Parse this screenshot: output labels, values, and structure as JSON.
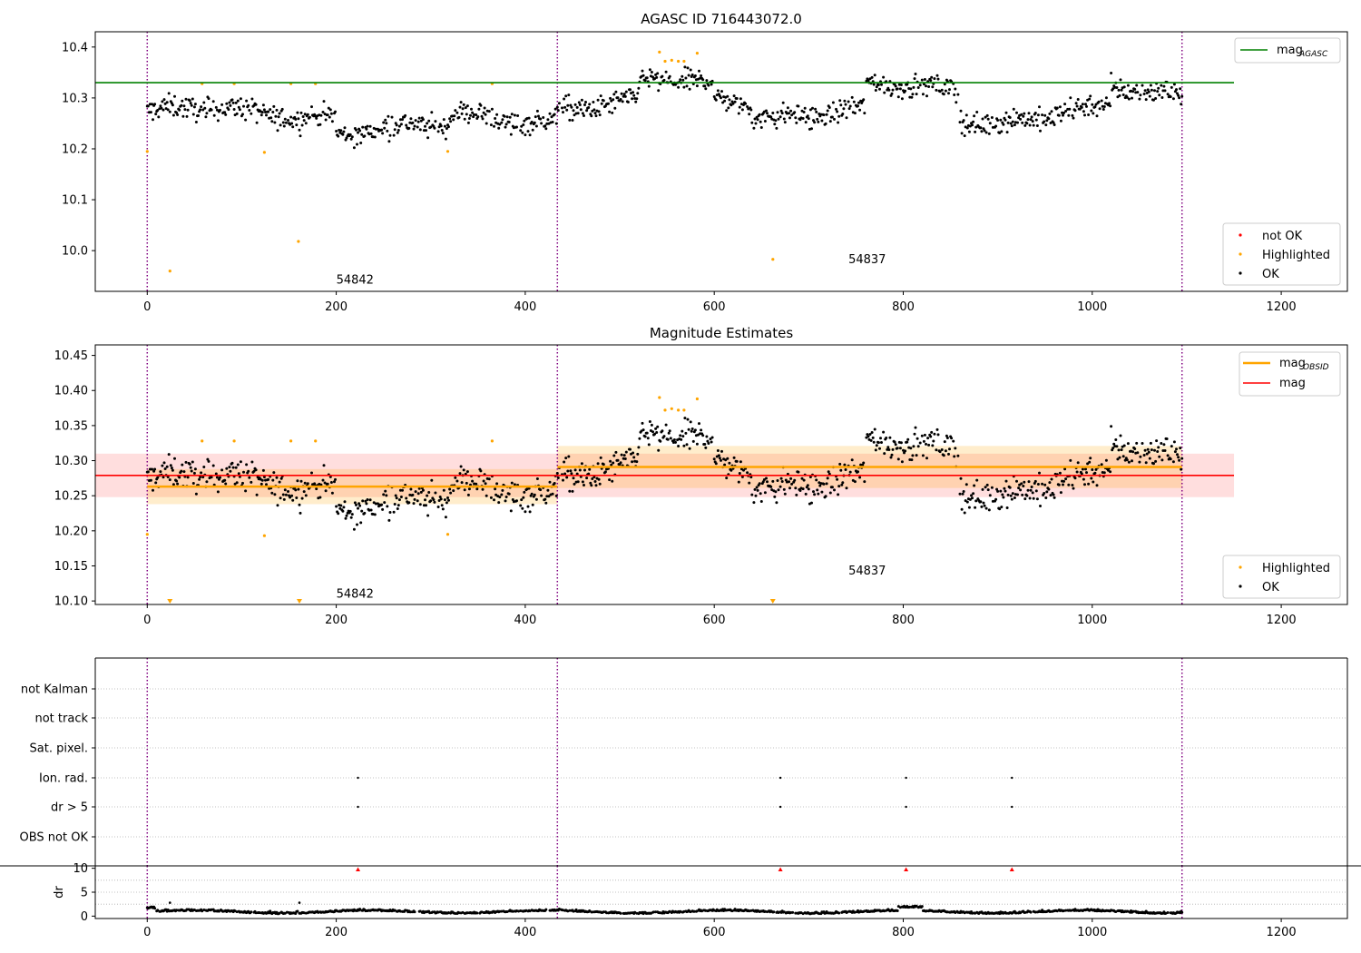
{
  "colors": {
    "ok": "#000000",
    "highlighted": "#ffa500",
    "not_ok": "#ff0000",
    "agasc_line": "#008000",
    "obsid_line": "#ffa500",
    "mag_line": "#ff0000",
    "obs_boundary": "#800080",
    "grid": "#b0b0b0"
  },
  "chart_data": [
    {
      "type": "scatter",
      "title": "AGASC ID 716443072.0",
      "xlim": [
        -55,
        1270
      ],
      "ylim": [
        9.92,
        10.43
      ],
      "xticks": [
        0,
        200,
        400,
        600,
        800,
        1000,
        1200
      ],
      "yticks": [
        10.0,
        10.1,
        10.2,
        10.3,
        10.4
      ],
      "ytick_labels": [
        "10.0",
        "10.1",
        "10.2",
        "10.3",
        "10.4"
      ],
      "mag_agasc": 10.33,
      "mag_agasc_x": [
        -55,
        1150
      ],
      "obs_boundaries": [
        0,
        434,
        1095
      ],
      "obs_labels": [
        {
          "text": "54842",
          "x": 200,
          "y": 9.935
        },
        {
          "text": "54837",
          "x": 742,
          "y": 9.975
        }
      ],
      "highlighted_points": [
        [
          0,
          10.195
        ],
        [
          24,
          9.96
        ],
        [
          58,
          10.328
        ],
        [
          92,
          10.328
        ],
        [
          124,
          10.193
        ],
        [
          152,
          10.328
        ],
        [
          160,
          10.018
        ],
        [
          178,
          10.328
        ],
        [
          318,
          10.195
        ],
        [
          365,
          10.328
        ],
        [
          542,
          10.39
        ],
        [
          548,
          10.372
        ],
        [
          555,
          10.374
        ],
        [
          562,
          10.372
        ],
        [
          568,
          10.372
        ],
        [
          582,
          10.388
        ],
        [
          662,
          9.983
        ]
      ],
      "legend_line": [
        "mag",
        "AGASC"
      ],
      "legend_points": [
        "not OK",
        "Highlighted",
        "OK"
      ]
    },
    {
      "type": "scatter",
      "title": "Magnitude Estimates",
      "xlim": [
        -55,
        1270
      ],
      "ylim": [
        10.095,
        10.465
      ],
      "xticks": [
        0,
        200,
        400,
        600,
        800,
        1000,
        1200
      ],
      "yticks": [
        10.1,
        10.15,
        10.2,
        10.25,
        10.3,
        10.35,
        10.4,
        10.45
      ],
      "ytick_labels": [
        "10.10",
        "10.15",
        "10.20",
        "10.25",
        "10.30",
        "10.35",
        "10.40",
        "10.45"
      ],
      "mag": 10.279,
      "mag_band": [
        10.248,
        10.31
      ],
      "mag_x": [
        -55,
        1150
      ],
      "obsid_segments": [
        {
          "x": [
            0,
            434
          ],
          "mag": 10.263,
          "band": [
            10.238,
            10.288
          ]
        },
        {
          "x": [
            434,
            1095
          ],
          "mag": 10.291,
          "band": [
            10.261,
            10.321
          ]
        }
      ],
      "obs_boundaries": [
        0,
        434,
        1095
      ],
      "obs_labels": [
        {
          "text": "54842",
          "x": 200,
          "y": 10.105
        },
        {
          "text": "54837",
          "x": 742,
          "y": 10.138
        }
      ],
      "highlighted_points": [
        [
          0,
          10.195
        ],
        [
          58,
          10.328
        ],
        [
          92,
          10.328
        ],
        [
          124,
          10.193
        ],
        [
          152,
          10.328
        ],
        [
          178,
          10.328
        ],
        [
          318,
          10.195
        ],
        [
          365,
          10.328
        ],
        [
          542,
          10.39
        ],
        [
          548,
          10.372
        ],
        [
          555,
          10.374
        ],
        [
          562,
          10.372
        ],
        [
          568,
          10.372
        ],
        [
          582,
          10.388
        ]
      ],
      "clipped_markers": [
        24,
        161,
        662
      ],
      "legend_line": [
        "mag",
        "OBSID",
        "mag"
      ],
      "legend_points": [
        "Highlighted",
        "OK"
      ]
    },
    {
      "type": "scatter",
      "xlim": [
        -55,
        1270
      ],
      "flag_categories": [
        "not Kalman",
        "not track",
        "Sat. pixel.",
        "Ion. rad.",
        "dr > 5",
        "OBS not OK"
      ],
      "flag_points": {
        "Ion. rad.": [
          223,
          670,
          803,
          915
        ],
        "dr > 5": [
          223,
          670,
          803,
          915
        ]
      },
      "obs_boundaries": [
        0,
        434,
        1095
      ]
    },
    {
      "type": "scatter",
      "ylabel": "dr",
      "xlim": [
        -55,
        1270
      ],
      "ylim": [
        -0.5,
        10.5
      ],
      "yticks": [
        0,
        5,
        10
      ],
      "ytick_labels": [
        "0",
        "5",
        "10"
      ],
      "xticks": [
        0,
        200,
        400,
        600,
        800,
        1000,
        1200
      ],
      "clipped_red": [
        223,
        670,
        803,
        915
      ],
      "outliers": [
        [
          24,
          2.8
        ],
        [
          161,
          2.8
        ]
      ],
      "obs_boundaries": [
        0,
        434,
        1095
      ]
    }
  ]
}
